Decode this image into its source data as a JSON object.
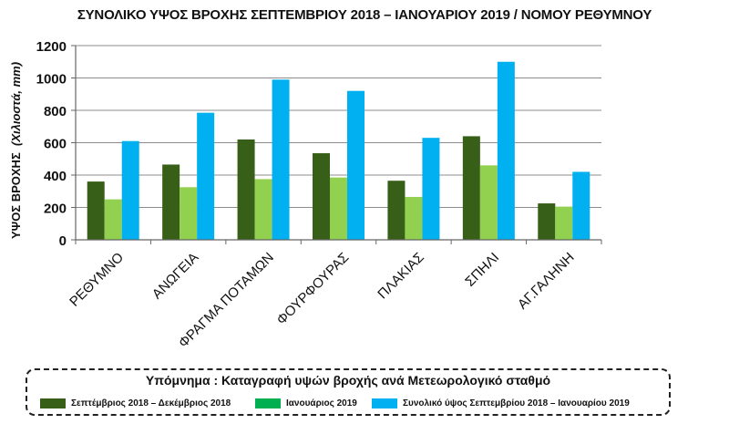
{
  "chart_data": {
    "type": "bar",
    "title": "ΣΥΝΟΛΙΚΟ ΥΨΟΣ ΒΡΟΧΗΣ ΣΕΠΤΕΜΒΡΙΟΥ 2018 – ΙΑΝΟΥΑΡΙΟΥ 2019 / ΝΟΜΟΥ ΡΕΘΥΜΝΟΥ",
    "xlabel": "",
    "ylabel_main": "ΥΨΟΣ ΒΡΟΧΗΣ",
    "ylabel_unit": "(Χιλιοστά, mm)",
    "ylim": [
      0,
      1200
    ],
    "yticks": [
      "0",
      "200",
      "400",
      "600",
      "800",
      "1000",
      "1200"
    ],
    "grid": true,
    "categories": [
      "ΡΕΘΥΜΝΟ",
      "ΑΝΩΓΕΙΑ",
      "ΦΡΑΓΜΑ ΠΟΤΑΜΩΝ",
      "ΦΟΥΡΦΟΥΡΑΣ",
      "ΠΛΑΚΙΑΣ",
      "ΣΠΗΛΙ",
      "ΑΓ.ΓΑΛΗΝΗ"
    ],
    "series": [
      {
        "name": "Σεπτέμβριος 2018 – Δεκέμβριος 2018",
        "color": "#375f17",
        "values": [
          360,
          465,
          620,
          535,
          365,
          640,
          225
        ]
      },
      {
        "name": "Ιανουάριος 2019",
        "color": "#92d050",
        "values": [
          250,
          325,
          375,
          385,
          265,
          460,
          205
        ]
      },
      {
        "name": "Συνολικό ύψος Σεπτεμβρίου 2018 – Ιανουαρίου 2019",
        "color": "#00b0f0",
        "values": [
          610,
          785,
          990,
          920,
          630,
          1100,
          420
        ]
      }
    ]
  },
  "legend": {
    "title": "Υπόμνημα : Καταγραφή υψών βροχής ανά Μετεωρολογικό σταθμό",
    "items": [
      {
        "label": "Σεπτέμβριος 2018 – Δεκέμβριος 2018",
        "color": "#375f17"
      },
      {
        "label": "Ιανουάριος 2019",
        "color": "#00b050"
      },
      {
        "label": "Συνολικό ύψος Σεπτεμβρίου 2018 – Ιανουαρίου 2019",
        "color": "#00b0f0"
      }
    ]
  }
}
